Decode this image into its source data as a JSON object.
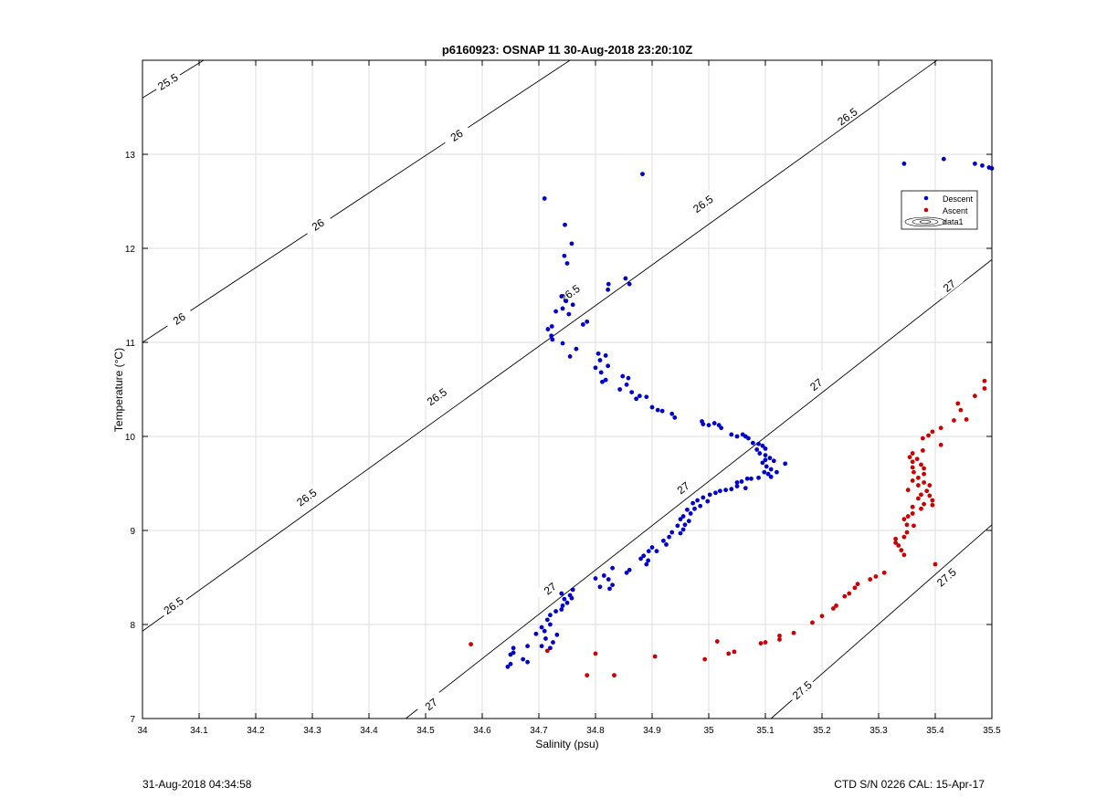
{
  "chart_data": {
    "type": "scatter",
    "title": "p6160923: OSNAP 11 30-Aug-2018 23:20:10Z",
    "xlabel": "Salinity (psu)",
    "ylabel": "Temperature (°C)",
    "xlim": [
      34,
      35.5
    ],
    "ylim": [
      7,
      14
    ],
    "xticks": [
      "34",
      "34.1",
      "34.2",
      "34.3",
      "34.4",
      "34.5",
      "34.6",
      "34.7",
      "34.8",
      "34.9",
      "35",
      "35.1",
      "35.2",
      "35.3",
      "35.4",
      "35.5"
    ],
    "yticks": [
      "7",
      "8",
      "9",
      "10",
      "11",
      "12",
      "13"
    ],
    "grid": true,
    "legend_placement": "upper-right",
    "legend": [
      {
        "label": "Descent",
        "color": "#0000cc",
        "marker": "dot"
      },
      {
        "label": "Ascent",
        "color": "#cc0000",
        "marker": "dot"
      },
      {
        "label": "data1",
        "color": "#000000",
        "marker": "contour"
      }
    ],
    "contours": [
      {
        "level": "25.5",
        "points": [
          [
            34.0,
            13.6
          ],
          [
            34.108,
            14.0
          ]
        ],
        "labels": [
          [
            34.045,
            13.77
          ]
        ]
      },
      {
        "level": "26",
        "points": [
          [
            34.0,
            11.0
          ],
          [
            34.755,
            14.0
          ]
        ],
        "labels": [
          [
            34.065,
            11.25
          ],
          [
            34.31,
            12.25
          ],
          [
            34.555,
            13.2
          ]
        ]
      },
      {
        "level": "26.5",
        "points": [
          [
            34.0,
            7.93
          ],
          [
            35.403,
            14.0
          ]
        ],
        "labels": [
          [
            34.055,
            8.2
          ],
          [
            34.29,
            9.35
          ],
          [
            34.52,
            10.42
          ],
          [
            34.755,
            11.52
          ],
          [
            34.99,
            12.47
          ],
          [
            35.245,
            13.4
          ]
        ]
      },
      {
        "level": "27",
        "points": [
          [
            34.465,
            7.0
          ],
          [
            35.5,
            11.88
          ]
        ],
        "labels": [
          [
            34.51,
            7.15
          ],
          [
            34.72,
            8.38
          ],
          [
            34.955,
            9.45
          ],
          [
            35.19,
            10.55
          ],
          [
            35.425,
            11.6
          ]
        ]
      },
      {
        "level": "27.5",
        "points": [
          [
            35.11,
            7.0
          ],
          [
            35.5,
            9.06
          ]
        ],
        "labels": [
          [
            35.165,
            7.3
          ],
          [
            35.42,
            8.5
          ]
        ]
      }
    ],
    "series": [
      {
        "name": "Descent",
        "color": "#0000cc",
        "points": [
          [
            34.71,
            12.53
          ],
          [
            34.883,
            12.79
          ],
          [
            34.746,
            12.25
          ],
          [
            34.758,
            12.05
          ],
          [
            34.745,
            11.92
          ],
          [
            34.75,
            11.84
          ],
          [
            34.853,
            11.68
          ],
          [
            34.86,
            11.62
          ],
          [
            34.823,
            11.62
          ],
          [
            34.822,
            11.56
          ],
          [
            34.74,
            11.49
          ],
          [
            34.748,
            11.44
          ],
          [
            34.76,
            11.4
          ],
          [
            34.742,
            11.36
          ],
          [
            34.753,
            11.3
          ],
          [
            34.73,
            11.33
          ],
          [
            34.785,
            11.22
          ],
          [
            34.778,
            11.19
          ],
          [
            34.723,
            11.17
          ],
          [
            34.716,
            11.14
          ],
          [
            34.722,
            11.07
          ],
          [
            34.724,
            11.03
          ],
          [
            34.742,
            10.99
          ],
          [
            34.766,
            10.93
          ],
          [
            34.755,
            10.85
          ],
          [
            34.805,
            10.88
          ],
          [
            34.818,
            10.86
          ],
          [
            34.808,
            10.81
          ],
          [
            34.822,
            10.75
          ],
          [
            34.8,
            10.73
          ],
          [
            34.81,
            10.68
          ],
          [
            34.818,
            10.6
          ],
          [
            34.812,
            10.58
          ],
          [
            34.848,
            10.64
          ],
          [
            34.858,
            10.62
          ],
          [
            34.855,
            10.55
          ],
          [
            34.843,
            10.5
          ],
          [
            34.864,
            10.47
          ],
          [
            34.878,
            10.43
          ],
          [
            34.872,
            10.4
          ],
          [
            34.89,
            10.42
          ],
          [
            34.9,
            10.31
          ],
          [
            34.91,
            10.28
          ],
          [
            34.918,
            10.27
          ],
          [
            34.935,
            10.24
          ],
          [
            34.94,
            10.2
          ],
          [
            34.988,
            10.16
          ],
          [
            34.99,
            10.13
          ],
          [
            35.0,
            10.12
          ],
          [
            35.01,
            10.14
          ],
          [
            35.018,
            10.12
          ],
          [
            35.022,
            10.09
          ],
          [
            35.04,
            10.02
          ],
          [
            35.05,
            10.0
          ],
          [
            35.06,
            10.02
          ],
          [
            35.065,
            10.0
          ],
          [
            35.07,
            9.98
          ],
          [
            35.078,
            9.93
          ],
          [
            35.088,
            9.92
          ],
          [
            35.095,
            9.9
          ],
          [
            35.1,
            9.87
          ],
          [
            35.085,
            9.86
          ],
          [
            35.09,
            9.82
          ],
          [
            35.1,
            9.8
          ],
          [
            35.108,
            9.77
          ],
          [
            35.115,
            9.74
          ],
          [
            35.1,
            9.75
          ],
          [
            35.095,
            9.72
          ],
          [
            35.135,
            9.71
          ],
          [
            35.102,
            9.68
          ],
          [
            35.11,
            9.65
          ],
          [
            35.098,
            9.62
          ],
          [
            35.12,
            9.62
          ],
          [
            35.105,
            9.6
          ],
          [
            35.11,
            9.57
          ],
          [
            35.088,
            9.56
          ],
          [
            35.075,
            9.55
          ],
          [
            35.068,
            9.55
          ],
          [
            35.058,
            9.52
          ],
          [
            35.05,
            9.51
          ],
          [
            35.05,
            9.47
          ],
          [
            35.065,
            9.45
          ],
          [
            35.04,
            9.44
          ],
          [
            35.03,
            9.43
          ],
          [
            35.02,
            9.42
          ],
          [
            35.012,
            9.4
          ],
          [
            35.002,
            9.38
          ],
          [
            34.99,
            9.35
          ],
          [
            34.998,
            9.31
          ],
          [
            34.98,
            9.32
          ],
          [
            34.972,
            9.29
          ],
          [
            34.985,
            9.26
          ],
          [
            34.975,
            9.23
          ],
          [
            34.962,
            9.22
          ],
          [
            34.968,
            9.18
          ],
          [
            34.955,
            9.15
          ],
          [
            34.95,
            9.12
          ],
          [
            34.965,
            9.1
          ],
          [
            34.958,
            9.06
          ],
          [
            34.945,
            9.05
          ],
          [
            34.955,
            9.01
          ],
          [
            34.935,
            8.98
          ],
          [
            34.95,
            8.97
          ],
          [
            34.93,
            8.93
          ],
          [
            34.92,
            8.89
          ],
          [
            34.925,
            8.85
          ],
          [
            34.9,
            8.82
          ],
          [
            34.908,
            8.78
          ],
          [
            34.894,
            8.78
          ],
          [
            34.885,
            8.73
          ],
          [
            34.88,
            8.7
          ],
          [
            34.893,
            8.68
          ],
          [
            34.89,
            8.64
          ],
          [
            34.86,
            8.58
          ],
          [
            34.855,
            8.55
          ],
          [
            34.83,
            8.6
          ],
          [
            34.815,
            8.52
          ],
          [
            34.8,
            8.49
          ],
          [
            34.823,
            8.48
          ],
          [
            34.83,
            8.42
          ],
          [
            34.825,
            8.38
          ],
          [
            34.808,
            8.4
          ],
          [
            34.76,
            8.37
          ],
          [
            34.74,
            8.33
          ],
          [
            34.755,
            8.31
          ],
          [
            34.758,
            8.28
          ],
          [
            34.745,
            8.27
          ],
          [
            34.75,
            8.23
          ],
          [
            34.742,
            8.2
          ],
          [
            34.74,
            8.16
          ],
          [
            34.73,
            8.14
          ],
          [
            34.72,
            8.1
          ],
          [
            34.715,
            8.05
          ],
          [
            34.72,
            8.0
          ],
          [
            34.705,
            7.97
          ],
          [
            34.71,
            7.93
          ],
          [
            34.695,
            7.9
          ],
          [
            34.732,
            7.89
          ],
          [
            34.712,
            7.85
          ],
          [
            34.725,
            7.81
          ],
          [
            34.705,
            7.77
          ],
          [
            34.72,
            7.75
          ],
          [
            34.68,
            7.77
          ],
          [
            34.655,
            7.75
          ],
          [
            34.655,
            7.7
          ],
          [
            34.65,
            7.68
          ],
          [
            34.672,
            7.63
          ],
          [
            34.68,
            7.6
          ],
          [
            34.65,
            7.58
          ],
          [
            34.645,
            7.55
          ],
          [
            35.345,
            12.9
          ],
          [
            35.415,
            12.95
          ],
          [
            35.47,
            12.9
          ],
          [
            35.483,
            12.88
          ],
          [
            35.495,
            12.86
          ],
          [
            35.5,
            12.85
          ]
        ]
      },
      {
        "name": "Ascent",
        "color": "#cc0000",
        "points": [
          [
            35.487,
            10.59
          ],
          [
            35.487,
            10.51
          ],
          [
            35.47,
            10.43
          ],
          [
            35.44,
            10.35
          ],
          [
            35.445,
            10.28
          ],
          [
            35.455,
            10.18
          ],
          [
            35.433,
            10.17
          ],
          [
            35.41,
            10.09
          ],
          [
            35.395,
            10.05
          ],
          [
            35.388,
            10.01
          ],
          [
            35.378,
            9.98
          ],
          [
            35.41,
            9.91
          ],
          [
            35.378,
            9.85
          ],
          [
            35.36,
            9.82
          ],
          [
            35.355,
            9.78
          ],
          [
            35.368,
            9.76
          ],
          [
            35.36,
            9.73
          ],
          [
            35.375,
            9.7
          ],
          [
            35.36,
            9.67
          ],
          [
            35.38,
            9.66
          ],
          [
            35.362,
            9.62
          ],
          [
            35.38,
            9.6
          ],
          [
            35.37,
            9.56
          ],
          [
            35.36,
            9.53
          ],
          [
            35.38,
            9.51
          ],
          [
            35.37,
            9.48
          ],
          [
            35.39,
            9.48
          ],
          [
            35.352,
            9.43
          ],
          [
            35.385,
            9.42
          ],
          [
            35.375,
            9.38
          ],
          [
            35.39,
            9.37
          ],
          [
            35.37,
            9.34
          ],
          [
            35.395,
            9.32
          ],
          [
            35.38,
            9.28
          ],
          [
            35.395,
            9.27
          ],
          [
            35.36,
            9.25
          ],
          [
            35.375,
            9.23
          ],
          [
            35.36,
            9.18
          ],
          [
            35.352,
            9.15
          ],
          [
            35.345,
            9.12
          ],
          [
            35.35,
            9.06
          ],
          [
            35.362,
            9.05
          ],
          [
            35.35,
            8.98
          ],
          [
            35.345,
            8.93
          ],
          [
            35.33,
            8.91
          ],
          [
            35.33,
            8.87
          ],
          [
            35.335,
            8.84
          ],
          [
            35.34,
            8.79
          ],
          [
            35.345,
            8.74
          ],
          [
            35.4,
            8.64
          ],
          [
            35.31,
            8.55
          ],
          [
            35.295,
            8.51
          ],
          [
            35.285,
            8.48
          ],
          [
            35.263,
            8.43
          ],
          [
            35.258,
            8.39
          ],
          [
            35.248,
            8.33
          ],
          [
            35.24,
            8.3
          ],
          [
            35.225,
            8.2
          ],
          [
            35.22,
            8.17
          ],
          [
            35.2,
            8.09
          ],
          [
            35.183,
            8.02
          ],
          [
            35.15,
            7.91
          ],
          [
            35.125,
            7.88
          ],
          [
            35.125,
            7.84
          ],
          [
            35.1,
            7.81
          ],
          [
            35.092,
            7.8
          ],
          [
            35.045,
            7.71
          ],
          [
            35.035,
            7.69
          ],
          [
            35.015,
            7.82
          ],
          [
            34.993,
            7.63
          ],
          [
            34.905,
            7.66
          ],
          [
            34.8,
            7.69
          ],
          [
            34.785,
            7.46
          ],
          [
            34.833,
            7.46
          ],
          [
            34.715,
            7.72
          ],
          [
            34.58,
            7.79
          ]
        ]
      }
    ]
  },
  "footer": {
    "left": "31-Aug-2018 04:34:58",
    "right": "CTD S/N 0226  CAL: 15-Apr-17"
  }
}
